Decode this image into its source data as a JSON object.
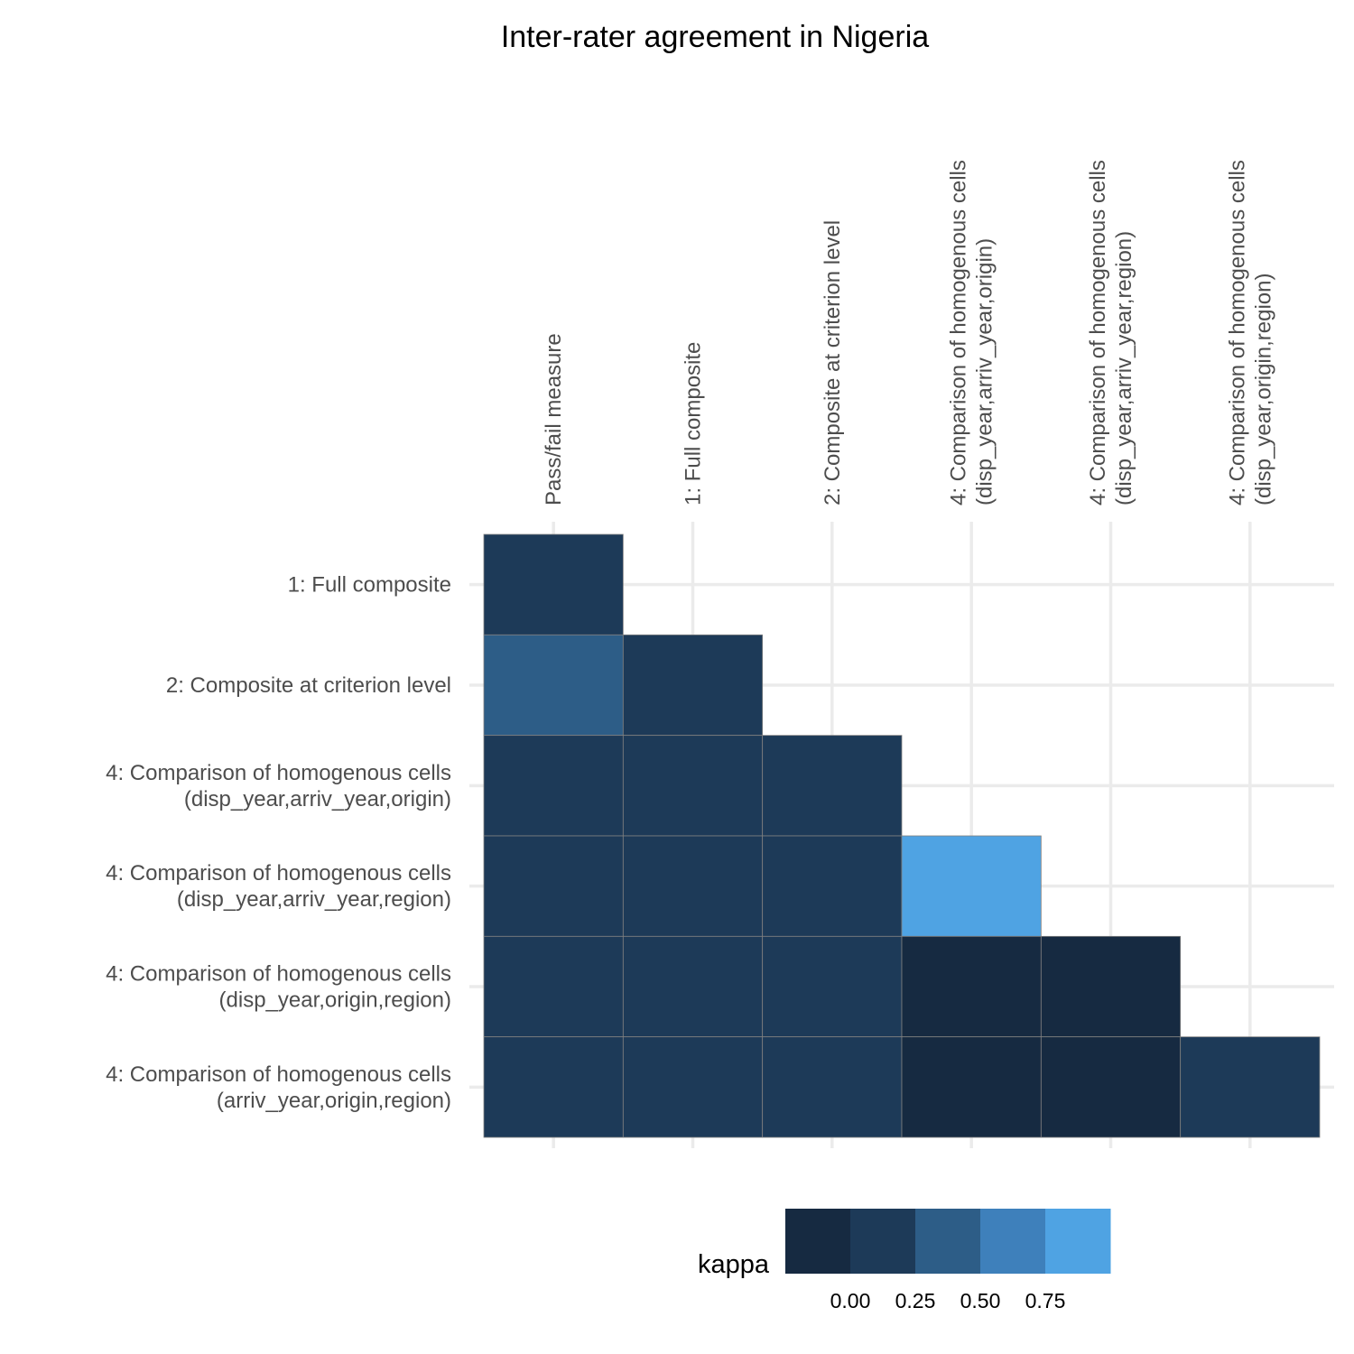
{
  "chart_data": {
    "type": "heatmap",
    "title": "Inter-rater agreement in Nigeria",
    "x_categories": [
      [
        "Pass/fail measure"
      ],
      [
        "1: Full composite"
      ],
      [
        "2: Composite at criterion level"
      ],
      [
        "4: Comparison of homogenous cells",
        "(disp_year,arriv_year,origin)"
      ],
      [
        "4: Comparison of homogenous cells",
        "(disp_year,arriv_year,region)"
      ],
      [
        "4: Comparison of homogenous cells",
        "(disp_year,origin,region)"
      ]
    ],
    "y_categories": [
      [
        "1: Full composite"
      ],
      [
        "2: Composite at criterion level"
      ],
      [
        "4: Comparison of homogenous cells",
        "(disp_year,arriv_year,origin)"
      ],
      [
        "4: Comparison of homogenous cells",
        "(disp_year,arriv_year,region)"
      ],
      [
        "4: Comparison of homogenous cells",
        "(disp_year,origin,region)"
      ],
      [
        "4: Comparison of homogenous cells",
        "(arriv_year,origin,region)"
      ]
    ],
    "cells": [
      {
        "row": 0,
        "col": 0,
        "value": 0.1
      },
      {
        "row": 1,
        "col": 0,
        "value": 0.35
      },
      {
        "row": 1,
        "col": 1,
        "value": 0.1
      },
      {
        "row": 2,
        "col": 0,
        "value": 0.1
      },
      {
        "row": 2,
        "col": 1,
        "value": 0.1
      },
      {
        "row": 2,
        "col": 2,
        "value": 0.1
      },
      {
        "row": 3,
        "col": 0,
        "value": 0.1
      },
      {
        "row": 3,
        "col": 1,
        "value": 0.1
      },
      {
        "row": 3,
        "col": 2,
        "value": 0.1
      },
      {
        "row": 3,
        "col": 3,
        "value": 0.85
      },
      {
        "row": 4,
        "col": 0,
        "value": 0.1
      },
      {
        "row": 4,
        "col": 1,
        "value": 0.1
      },
      {
        "row": 4,
        "col": 2,
        "value": 0.1
      },
      {
        "row": 4,
        "col": 3,
        "value": -0.05
      },
      {
        "row": 4,
        "col": 4,
        "value": -0.05
      },
      {
        "row": 5,
        "col": 0,
        "value": 0.1
      },
      {
        "row": 5,
        "col": 1,
        "value": 0.1
      },
      {
        "row": 5,
        "col": 2,
        "value": 0.1
      },
      {
        "row": 5,
        "col": 3,
        "value": -0.05
      },
      {
        "row": 5,
        "col": 4,
        "value": -0.05
      },
      {
        "row": 5,
        "col": 5,
        "value": 0.1
      }
    ],
    "legend": {
      "title": "kappa",
      "position": "bottom",
      "type": "binned",
      "bins": [
        {
          "min": -0.25,
          "max": 0.0,
          "color": "#162a41"
        },
        {
          "min": 0.0,
          "max": 0.25,
          "color": "#1d3a58"
        },
        {
          "min": 0.25,
          "max": 0.5,
          "color": "#2d5d87"
        },
        {
          "min": 0.5,
          "max": 0.75,
          "color": "#3e80bb"
        },
        {
          "min": 0.75,
          "max": 1.0,
          "color": "#4fa3e3"
        }
      ],
      "breaks": [
        "0.00",
        "0.25",
        "0.50",
        "0.75"
      ]
    },
    "grid": true,
    "colors": {
      "grid": "#ebebeb",
      "cell_border": "#808080",
      "axis_text": "#4d4d4d"
    }
  }
}
